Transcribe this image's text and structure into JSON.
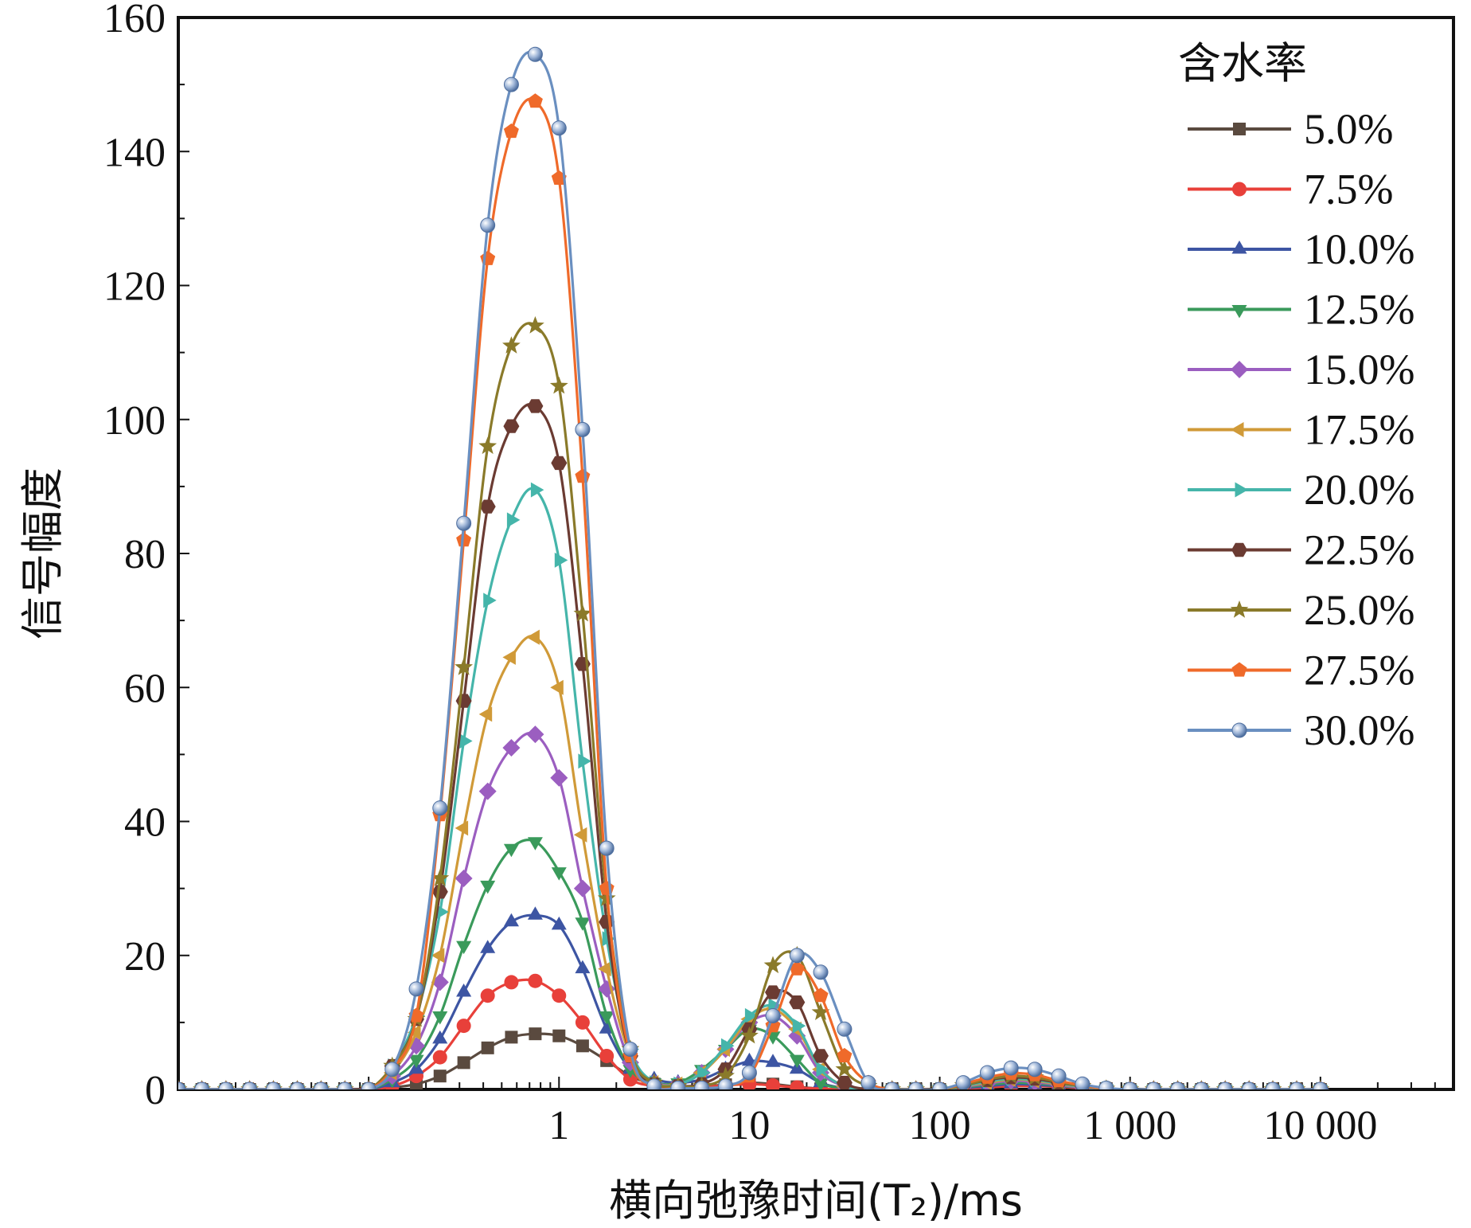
{
  "chart_data": {
    "type": "line",
    "xlabel": "横向弛豫时间(T₂)/ms",
    "ylabel": "信号幅度",
    "xscale": "log",
    "xlim": [
      0.01,
      50000
    ],
    "ylim": [
      0,
      160
    ],
    "x_ticks": [
      {
        "value": 1,
        "label": "1"
      },
      {
        "value": 10,
        "label": "10"
      },
      {
        "value": 100,
        "label": "100"
      },
      {
        "value": 1000,
        "label": "1 000"
      },
      {
        "value": 10000,
        "label": "10 000"
      }
    ],
    "y_ticks": [
      0,
      20,
      40,
      60,
      80,
      100,
      120,
      140,
      160
    ],
    "legend": {
      "title": "含水率",
      "position": "top-right"
    },
    "x": [
      0.01,
      0.0133,
      0.0178,
      0.0237,
      0.0316,
      0.0422,
      0.0562,
      0.075,
      0.1,
      0.133,
      0.178,
      0.237,
      0.316,
      0.422,
      0.562,
      0.75,
      1,
      1.33,
      1.78,
      2.37,
      3.16,
      4.22,
      5.62,
      7.5,
      10,
      13.3,
      17.8,
      23.7,
      31.6,
      42.2,
      56.2,
      75,
      100,
      133,
      178,
      237,
      316,
      422,
      562,
      750,
      1000,
      1330,
      1780,
      2370,
      3160,
      4220,
      5620,
      7500,
      10000
    ],
    "series": [
      {
        "name": "5.0%",
        "color": "#5a4a3f",
        "marker": "square",
        "values": [
          0,
          0,
          0,
          0,
          0,
          0,
          0,
          0,
          0,
          0.3,
          0.8,
          2.0,
          4.0,
          6.2,
          7.8,
          8.3,
          8.0,
          6.5,
          4.3,
          2.0,
          0.8,
          0.5,
          0.5,
          0.7,
          1.0,
          0.8,
          0.4,
          0.1,
          0,
          0,
          0,
          0,
          0,
          0.1,
          0.3,
          0.5,
          0.5,
          0.4,
          0.2,
          0.1,
          0,
          0,
          0,
          0,
          0,
          0,
          0,
          0,
          0
        ]
      },
      {
        "name": "7.5%",
        "color": "#e8403a",
        "marker": "circle",
        "values": [
          0,
          0,
          0,
          0,
          0,
          0,
          0,
          0,
          0,
          0.5,
          2.0,
          4.8,
          9.5,
          14.0,
          16.0,
          16.2,
          14.0,
          10.0,
          5.0,
          1.5,
          0.5,
          0.3,
          0.4,
          0.6,
          0.8,
          0.6,
          0.3,
          0.1,
          0,
          0,
          0,
          0,
          0,
          0.1,
          0.3,
          0.5,
          0.5,
          0.4,
          0.2,
          0.1,
          0,
          0,
          0,
          0,
          0,
          0,
          0,
          0,
          0
        ]
      },
      {
        "name": "10.0%",
        "color": "#3d55a3",
        "marker": "triangle-up",
        "values": [
          0,
          0,
          0,
          0,
          0,
          0,
          0,
          0,
          0,
          1.0,
          3.0,
          7.5,
          14.5,
          21.0,
          25.0,
          26.0,
          24.5,
          18.0,
          9.0,
          3.0,
          1.5,
          1.0,
          1.5,
          3.0,
          4.2,
          4.0,
          3.0,
          1.0,
          0.2,
          0,
          0,
          0,
          0,
          0.2,
          0.5,
          0.8,
          0.7,
          0.5,
          0.3,
          0.1,
          0,
          0,
          0,
          0,
          0,
          0,
          0,
          0,
          0
        ]
      },
      {
        "name": "12.5%",
        "color": "#3a9a5b",
        "marker": "triangle-down",
        "values": [
          0,
          0,
          0,
          0,
          0,
          0,
          0,
          0,
          0,
          1.5,
          4.5,
          11.0,
          21.5,
          30.5,
          36.0,
          37.0,
          32.5,
          25.0,
          11.0,
          3.0,
          1.0,
          1.0,
          3.0,
          6.0,
          9.0,
          8.0,
          4.5,
          1.0,
          0.2,
          0,
          0,
          0,
          0,
          0.3,
          0.7,
          1.0,
          0.9,
          0.6,
          0.3,
          0.1,
          0,
          0,
          0,
          0,
          0,
          0,
          0,
          0,
          0
        ]
      },
      {
        "name": "15.0%",
        "color": "#9b5ec0",
        "marker": "diamond",
        "values": [
          0,
          0,
          0,
          0,
          0,
          0,
          0,
          0,
          0,
          2.0,
          6.5,
          16.0,
          31.5,
          44.5,
          51.0,
          53.0,
          46.5,
          30.0,
          15.0,
          4.0,
          1.0,
          0.8,
          2.5,
          6.0,
          10.0,
          11.0,
          8.0,
          2.5,
          0.5,
          0,
          0,
          0,
          0,
          0.4,
          0.9,
          1.3,
          1.1,
          0.7,
          0.3,
          0.1,
          0,
          0,
          0,
          0,
          0,
          0,
          0,
          0,
          0
        ]
      },
      {
        "name": "17.5%",
        "color": "#d09a38",
        "marker": "triangle-left",
        "values": [
          0,
          0,
          0,
          0,
          0,
          0,
          0,
          0,
          0,
          2.5,
          8.5,
          20.0,
          39.0,
          56.0,
          64.5,
          67.5,
          60.0,
          38.0,
          18.0,
          5.0,
          1.0,
          0.8,
          2.5,
          6.0,
          10.5,
          12.0,
          9.0,
          3.0,
          0.5,
          0,
          0,
          0,
          0,
          0.5,
          1.0,
          1.5,
          1.3,
          0.8,
          0.4,
          0.1,
          0,
          0,
          0,
          0,
          0,
          0,
          0,
          0,
          0
        ]
      },
      {
        "name": "20.0%",
        "color": "#45b5aa",
        "marker": "triangle-right",
        "values": [
          0,
          0,
          0,
          0,
          0,
          0,
          0,
          0,
          0,
          3.5,
          11.0,
          26.5,
          52.0,
          73.0,
          85.0,
          89.5,
          79.0,
          49.0,
          22.5,
          6.0,
          1.0,
          0.8,
          2.5,
          6.5,
          11.0,
          12.5,
          9.5,
          3.0,
          0.5,
          0,
          0,
          0,
          0,
          0.5,
          1.2,
          1.6,
          1.4,
          0.9,
          0.4,
          0.1,
          0,
          0,
          0,
          0,
          0,
          0,
          0,
          0,
          0
        ]
      },
      {
        "name": "22.5%",
        "color": "#6b3b32",
        "marker": "hexagon",
        "values": [
          0,
          0,
          0,
          0,
          0,
          0,
          0,
          0,
          0,
          3.5,
          10.5,
          29.5,
          58.0,
          87.0,
          99.0,
          102.0,
          93.5,
          63.5,
          25.0,
          5.0,
          0.8,
          0.5,
          0.8,
          3.0,
          9.0,
          14.5,
          13.0,
          5.0,
          1.0,
          0,
          0,
          0,
          0,
          0.6,
          1.4,
          1.8,
          1.6,
          1.0,
          0.5,
          0.1,
          0,
          0,
          0,
          0,
          0,
          0,
          0,
          0,
          0
        ]
      },
      {
        "name": "25.0%",
        "color": "#8a7a2a",
        "marker": "star",
        "values": [
          0,
          0,
          0,
          0,
          0,
          0,
          0,
          0,
          0,
          3.5,
          10.5,
          31.5,
          63.0,
          96.0,
          111.0,
          114.0,
          105.0,
          71.0,
          28.5,
          6.0,
          1.0,
          0.5,
          0.5,
          2.0,
          8.0,
          18.5,
          20.0,
          11.5,
          3.0,
          0.5,
          0,
          0,
          0,
          0.6,
          1.5,
          2.0,
          1.8,
          1.1,
          0.5,
          0.1,
          0,
          0,
          0,
          0,
          0,
          0,
          0,
          0,
          0
        ]
      },
      {
        "name": "27.5%",
        "color": "#ef6a2a",
        "marker": "pentagon",
        "values": [
          0,
          0,
          0,
          0,
          0,
          0,
          0,
          0,
          0,
          3.0,
          11.0,
          41.0,
          82.0,
          124.0,
          143.0,
          147.5,
          136.0,
          91.5,
          30.0,
          5.0,
          0.5,
          0.2,
          0.2,
          0.5,
          2.0,
          9.5,
          18.0,
          14.0,
          5.0,
          1.0,
          0,
          0,
          0,
          0.8,
          1.8,
          2.4,
          2.2,
          1.3,
          0.6,
          0.1,
          0,
          0,
          0,
          0,
          0,
          0,
          0,
          0,
          0
        ]
      },
      {
        "name": "30.0%",
        "color": "#6a8fc0",
        "marker": "sphere",
        "values": [
          0,
          0,
          0,
          0,
          0,
          0,
          0,
          0,
          0,
          3.0,
          15.0,
          42.0,
          84.5,
          129.0,
          150.0,
          154.5,
          143.5,
          98.5,
          36.0,
          6.0,
          0.5,
          0.2,
          0.2,
          0.5,
          2.5,
          11.0,
          20.0,
          17.5,
          9.0,
          1.0,
          0,
          0,
          0,
          1.0,
          2.5,
          3.2,
          3.0,
          2.0,
          0.8,
          0.2,
          0,
          0,
          0,
          0,
          0,
          0,
          0,
          0,
          0
        ]
      }
    ]
  }
}
